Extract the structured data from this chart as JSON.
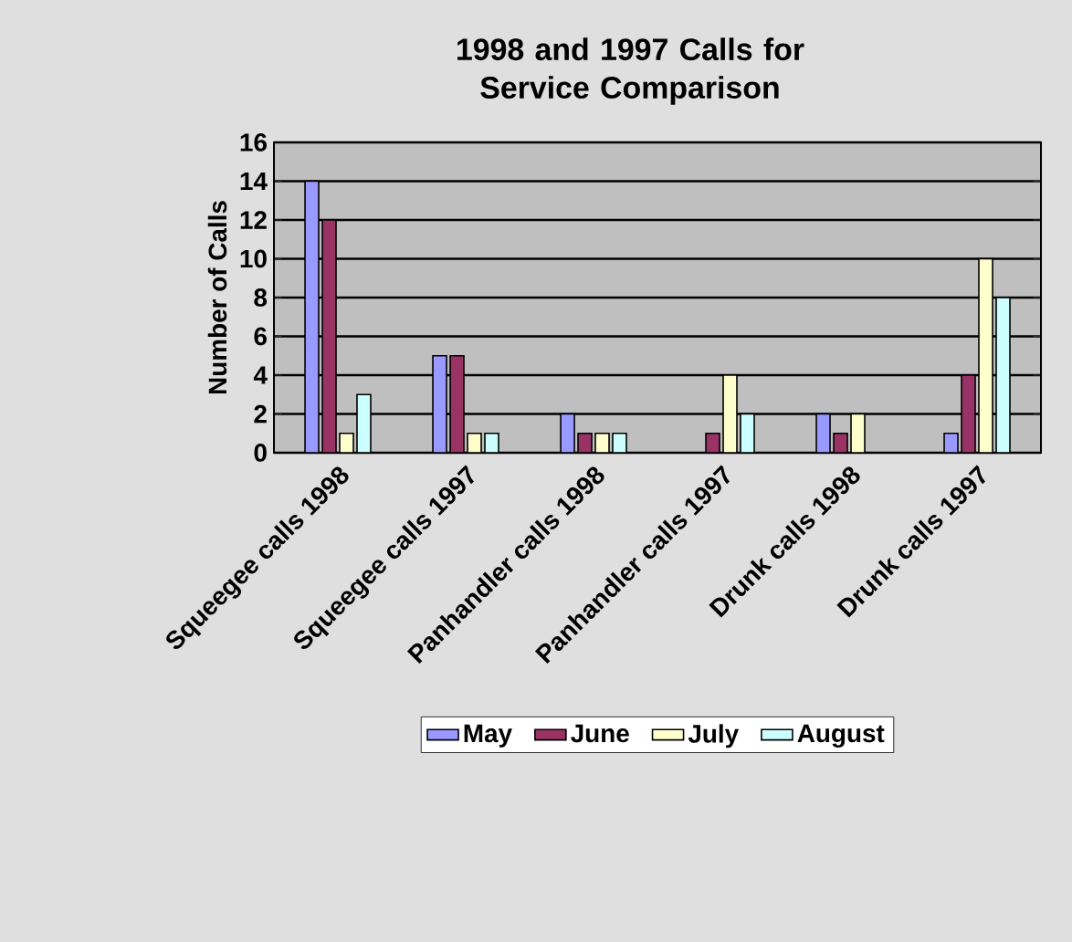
{
  "chart_data": {
    "type": "bar",
    "title": "1998 and 1997 Calls for Service Comparison",
    "ylabel": "Number of Calls",
    "categories": [
      "Squeegee calls 1998",
      "Squeegee calls 1997",
      "Panhandler calls 1998",
      "Panhandler calls 1997",
      "Drunk calls 1998",
      "Drunk calls 1997"
    ],
    "series": [
      {
        "name": "May",
        "color": "#9999ff",
        "values": [
          14,
          5,
          2,
          0,
          2,
          1
        ]
      },
      {
        "name": "June",
        "color": "#993366",
        "values": [
          12,
          5,
          1,
          1,
          1,
          4
        ]
      },
      {
        "name": "July",
        "color": "#ffffcc",
        "values": [
          1,
          1,
          1,
          4,
          2,
          10
        ]
      },
      {
        "name": "August",
        "color": "#ccffff",
        "values": [
          3,
          1,
          1,
          2,
          0,
          8
        ]
      }
    ],
    "ylim": [
      0,
      16
    ],
    "yticks": [
      0,
      2,
      4,
      6,
      8,
      10,
      12,
      14,
      16
    ],
    "grid": "y",
    "legend": "bottom"
  }
}
